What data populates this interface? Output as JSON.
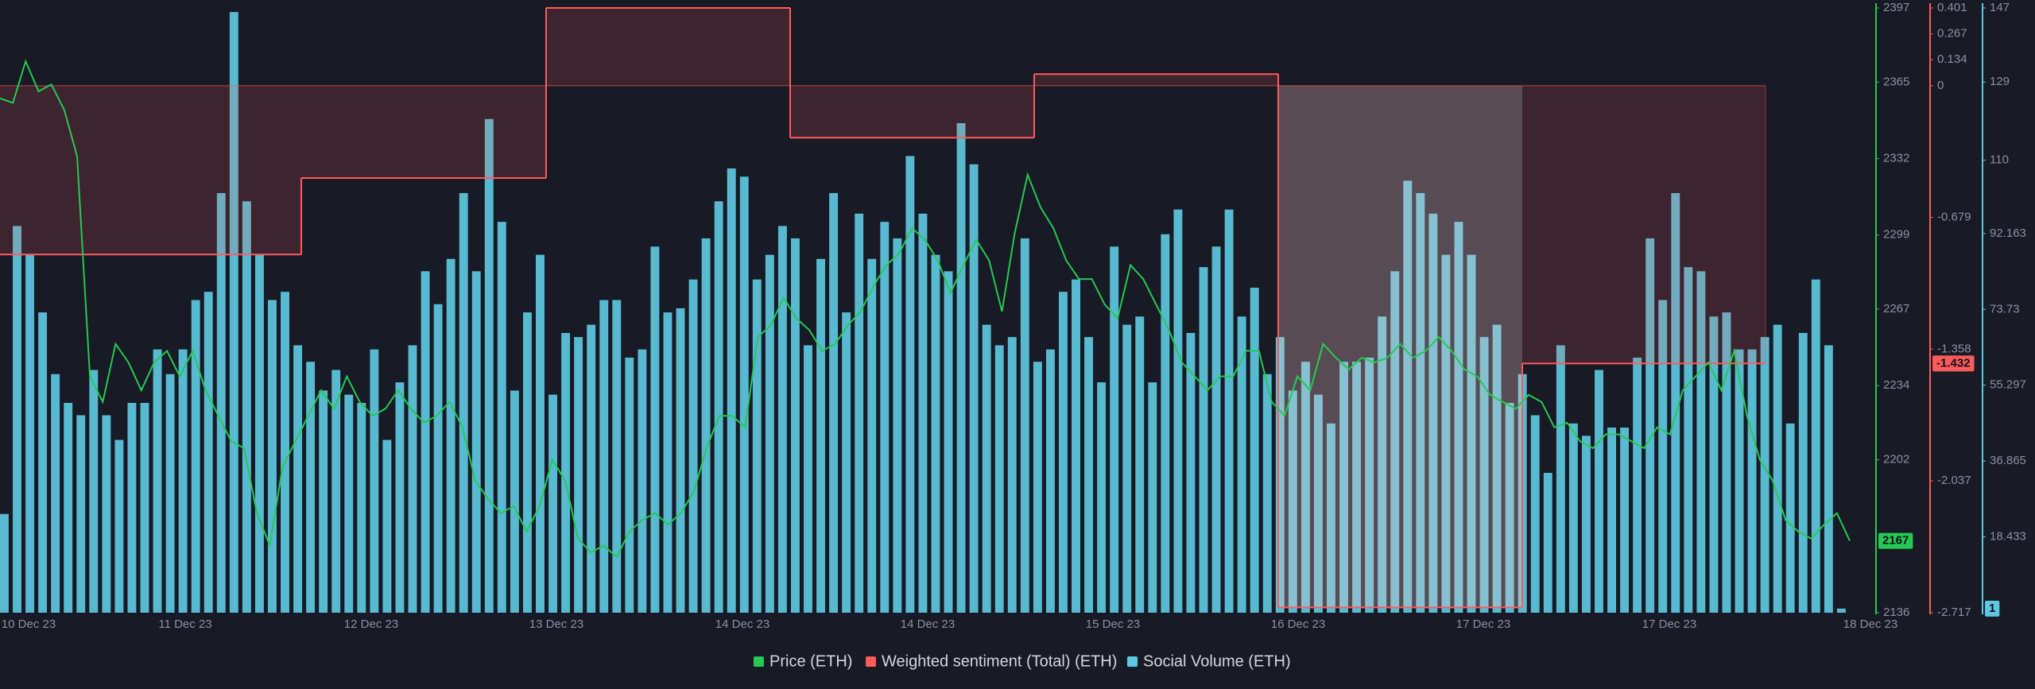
{
  "chart_data": {
    "type": "combo",
    "x_tick_labels": [
      "10 Dec 23",
      "11 Dec 23",
      "12 Dec 23",
      "13 Dec 23",
      "14 Dec 23",
      "14 Dec 23",
      "15 Dec 23",
      "16 Dec 23",
      "17 Dec 23",
      "17 Dec 23",
      "18 Dec 23"
    ],
    "ylim": [
      2136,
      2397
    ],
    "yticks": [
      2397,
      2365,
      2332,
      2299,
      2267,
      2234,
      2202,
      2136
    ],
    "y2lim": [
      -2.717,
      0.401
    ],
    "y2ticks": [
      0.401,
      0.267,
      0.134,
      0,
      -0.679,
      -1.358,
      -2.037,
      -2.717
    ],
    "y3lim": [
      0,
      147
    ],
    "y3ticks": [
      147,
      129,
      110,
      92.163,
      73.73,
      55.297,
      36.865,
      18.433
    ],
    "series": [
      {
        "name": "Price (ETH)",
        "type": "line",
        "axis": "y",
        "color": "#26c953",
        "values": [
          2358,
          2356,
          2374,
          2361,
          2364,
          2353,
          2333,
          2238,
          2227,
          2252,
          2244,
          2232,
          2244,
          2249,
          2238,
          2249,
          2232,
          2221,
          2210,
          2207,
          2179,
          2165,
          2199,
          2210,
          2221,
          2232,
          2224,
          2238,
          2227,
          2221,
          2224,
          2232,
          2224,
          2218,
          2221,
          2227,
          2216,
          2193,
          2185,
          2179,
          2182,
          2171,
          2182,
          2202,
          2193,
          2168,
          2162,
          2165,
          2160,
          2171,
          2176,
          2179,
          2174,
          2179,
          2188,
          2207,
          2221,
          2221,
          2216,
          2255,
          2260,
          2272,
          2263,
          2258,
          2249,
          2252,
          2260,
          2266,
          2277,
          2286,
          2291,
          2302,
          2297,
          2288,
          2274,
          2286,
          2297,
          2288,
          2266,
          2300,
          2325,
          2311,
          2302,
          2288,
          2280,
          2280,
          2269,
          2263,
          2286,
          2280,
          2269,
          2258,
          2244,
          2238,
          2232,
          2238,
          2238,
          2249,
          2249,
          2227,
          2221,
          2238,
          2232,
          2252,
          2246,
          2241,
          2246,
          2244,
          2246,
          2252,
          2246,
          2249,
          2255,
          2249,
          2241,
          2238,
          2230,
          2227,
          2224,
          2230,
          2227,
          2216,
          2218,
          2210,
          2207,
          2213,
          2213,
          2210,
          2207,
          2216,
          2213,
          2232,
          2238,
          2244,
          2232,
          2249,
          2221,
          2202,
          2193,
          2176,
          2171,
          2168,
          2174,
          2179,
          2167
        ]
      },
      {
        "name": "Weighted sentiment (Total) (ETH)",
        "type": "step",
        "axis": "y2",
        "color": "#ff5b5b",
        "values": [
          -0.87,
          -0.476,
          0.401,
          -0.268,
          0.06,
          -2.69,
          -1.432
        ]
      },
      {
        "name": "Social Volume (ETH)",
        "type": "bar",
        "axis": "y3",
        "color": "#5ec8e0",
        "values": [
          24,
          94,
          87,
          73,
          58,
          51,
          48,
          59,
          48,
          42,
          51,
          51,
          64,
          58,
          64,
          76,
          78,
          102,
          146,
          100,
          87,
          76,
          78,
          65,
          61,
          54,
          59,
          53,
          51,
          64,
          42,
          56,
          65,
          83,
          75,
          86,
          102,
          83,
          120,
          95,
          54,
          73,
          87,
          53,
          68,
          67,
          70,
          76,
          76,
          62,
          64,
          89,
          73,
          74,
          81,
          91,
          100,
          108,
          106,
          81,
          87,
          94,
          91,
          65,
          86,
          102,
          73,
          97,
          86,
          95,
          91,
          111,
          97,
          87,
          83,
          119,
          109,
          70,
          65,
          67,
          91,
          61,
          64,
          78,
          81,
          67,
          56,
          89,
          70,
          72,
          56,
          92,
          98,
          68,
          84,
          89,
          98,
          72,
          79,
          58,
          67,
          54,
          61,
          53,
          46,
          61,
          61,
          62,
          72,
          83,
          105,
          102,
          97,
          87,
          95,
          87,
          67,
          70,
          51,
          58,
          48,
          34,
          65,
          46,
          43,
          59,
          45,
          45,
          62,
          91,
          76,
          102,
          84,
          83,
          72,
          73,
          64,
          64,
          67,
          70,
          46,
          68,
          81,
          65,
          1
        ]
      }
    ]
  }
}
